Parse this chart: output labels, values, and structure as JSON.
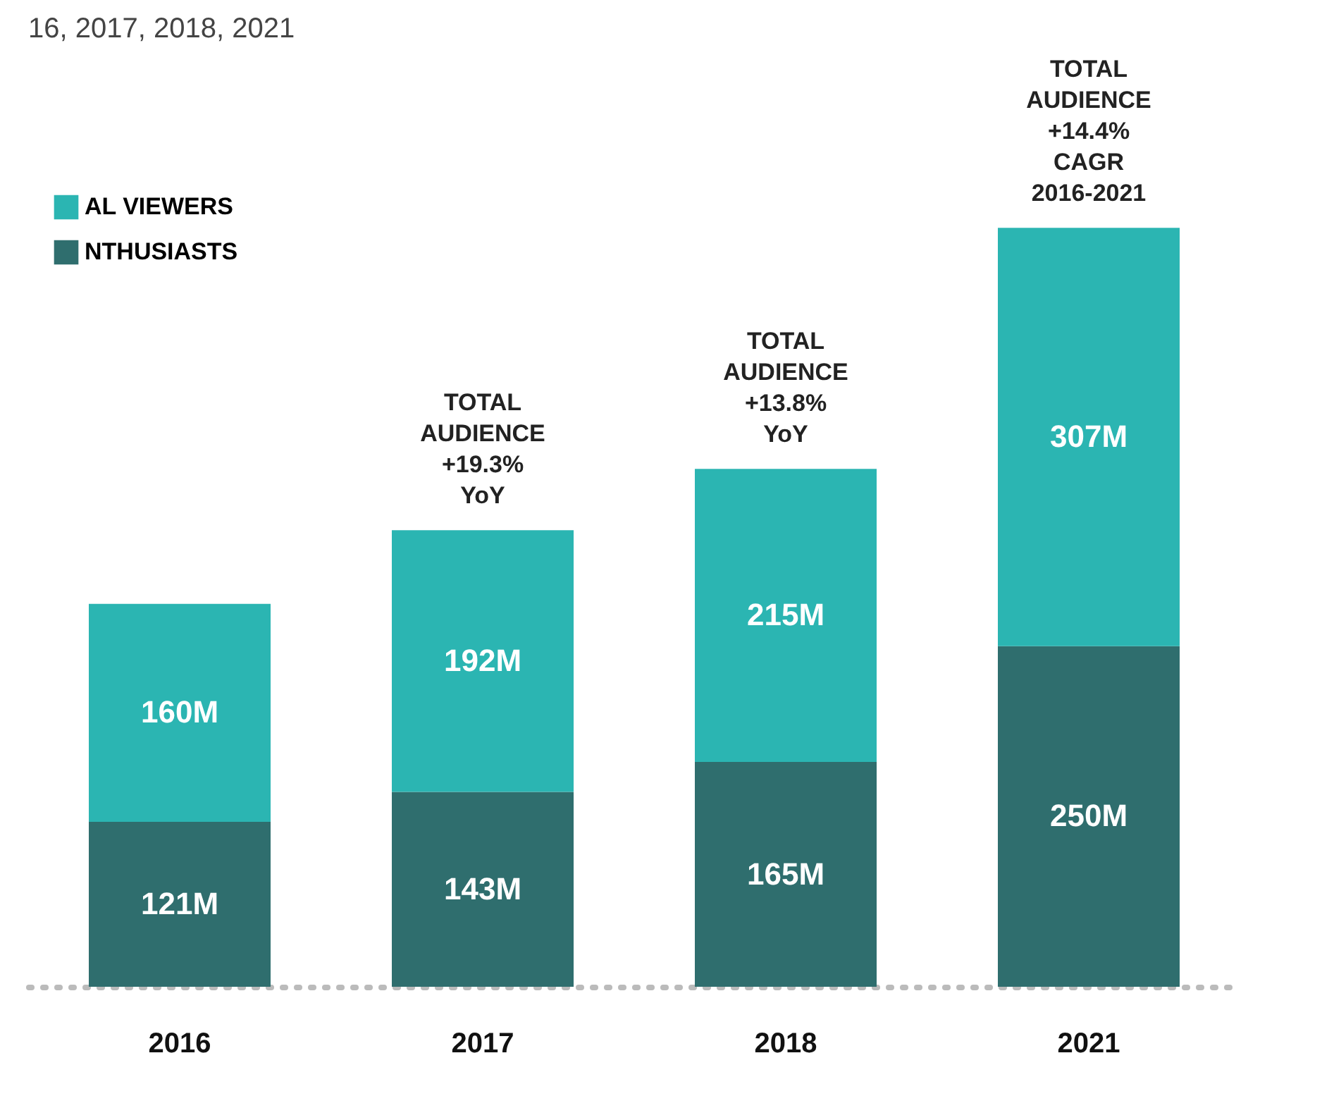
{
  "chart_data": {
    "type": "bar",
    "title": "16, 2017, 2018, 2021",
    "categories": [
      "2016",
      "2017",
      "2018",
      "2021"
    ],
    "stacked": true,
    "series": [
      {
        "name": "NTHUSIASTS",
        "color": "#2f6e6e",
        "values": [
          121,
          143,
          165,
          250
        ],
        "value_labels": [
          "121M",
          "143M",
          "165M",
          "250M"
        ]
      },
      {
        "name": "AL VIEWERS",
        "color": "#2bb5b2",
        "values": [
          160,
          192,
          215,
          307
        ],
        "value_labels": [
          "160M",
          "192M",
          "215M",
          "307M"
        ]
      }
    ],
    "legend": "top left",
    "annotations": [
      {
        "text": "TOTAL\nAUDIENCE\n+19.3%\nYoY",
        "x": "2017",
        "y": 335
      },
      {
        "text": "TOTAL\nAUDIENCE\n+13.8%\nYoY",
        "x": "2018",
        "y": 380
      },
      {
        "text": "TOTAL\nAUDIENCE\n+14.4%\nCAGR\n2016-2021",
        "x": "2021",
        "y": 557
      }
    ]
  }
}
